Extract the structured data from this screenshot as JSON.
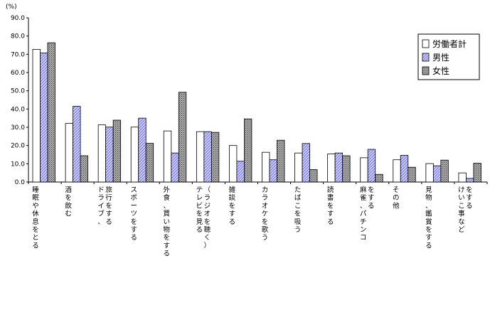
{
  "chart_data": {
    "type": "bar",
    "ylabel": "(%)",
    "ylim": [
      0,
      90
    ],
    "yticks": [
      "0.0",
      "10.0",
      "20.0",
      "30.0",
      "40.0",
      "50.0",
      "60.0",
      "70.0",
      "80.0",
      "90.0"
    ],
    "grid": false,
    "legend_position": "top-right",
    "categories": [
      "睡眠や休息をとる",
      "酒を飲む",
      "ドライブ、旅行をする",
      "スポーツをする",
      "外食、買い物をする",
      "テレビを見る（ラジオを聴く）",
      "雑談をする",
      "カラオケを歌う",
      "たばこを吸う",
      "読書をする",
      "麻雀、パチンコをする",
      "その他",
      "見物、鑑賞をする",
      "けいこ事などをする"
    ],
    "category_columns": [
      [
        "睡眠や休息をとる"
      ],
      [
        "酒を飲む"
      ],
      [
        "旅行をする",
        "ドライブ、"
      ],
      [
        "スポーツをする"
      ],
      [
        "外食、買い物をする"
      ],
      [
        "（ラジオを聴く）",
        "テレビを見る"
      ],
      [
        "雑談をする"
      ],
      [
        "カラオケを歌う"
      ],
      [
        "たばこを吸う"
      ],
      [
        "読書をする"
      ],
      [
        "をする",
        "麻雀、パチンコ"
      ],
      [
        "その他"
      ],
      [
        "見物、鑑賞をする"
      ],
      [
        "をする",
        "けいこ事など"
      ]
    ],
    "series": [
      {
        "name": "労働者計",
        "color": "#ffffff",
        "pattern": "solid",
        "values": [
          72.7,
          32.1,
          31.3,
          30.1,
          28.0,
          27.6,
          20.0,
          16.3,
          15.9,
          15.4,
          13.3,
          12.2,
          10.1,
          5.0
        ]
      },
      {
        "name": "男性",
        "color": "#ccccff",
        "pattern": "diagonal-hatch",
        "values": [
          70.7,
          41.5,
          30.1,
          35.0,
          15.9,
          27.6,
          11.4,
          12.2,
          21.1,
          15.9,
          17.9,
          14.6,
          8.9,
          2.0
        ]
      },
      {
        "name": "女性",
        "color": "#999999",
        "pattern": "crosshatch",
        "values": [
          76.3,
          14.4,
          33.9,
          21.2,
          49.2,
          27.2,
          34.6,
          22.9,
          6.8,
          14.4,
          4.2,
          8.1,
          12.0,
          10.3
        ]
      }
    ]
  }
}
